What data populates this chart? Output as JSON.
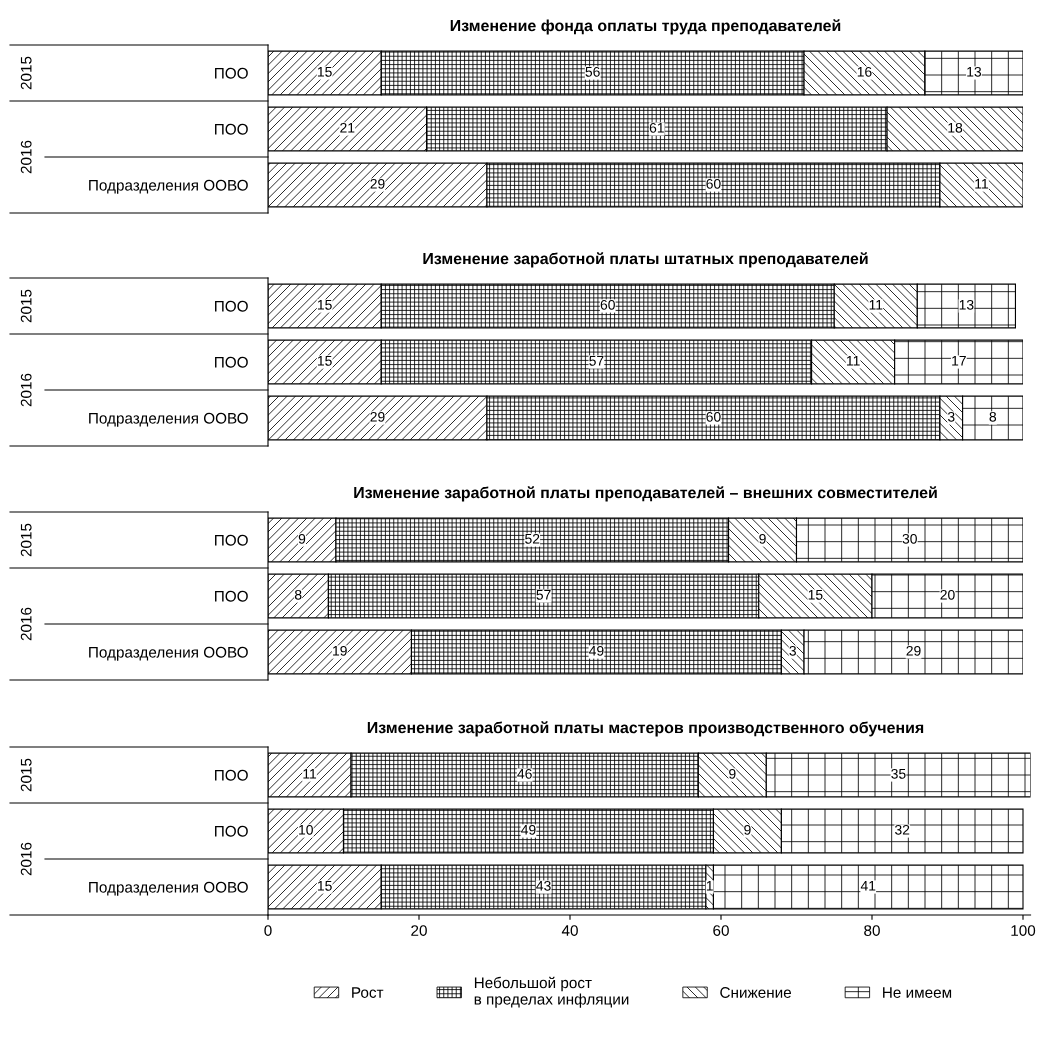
{
  "chart_data": [
    {
      "type": "bar",
      "orientation": "horizontal",
      "stacked": true,
      "data_labels": true,
      "title": "Изменение фонда оплаты труда преподавателей",
      "categories": [
        "ПОО",
        "ПОО",
        "Подразделения ООВО"
      ],
      "annotations": [
        "2015",
        "2016"
      ],
      "xlim": [
        0,
        100
      ],
      "tick_labels": "y",
      "legend": "bottom",
      "series": [
        {
          "name": "Рост",
          "color": "#000000",
          "values": [
            15,
            21,
            29
          ]
        },
        {
          "name": "Небольшой рост\nв пределах инфляции",
          "color": "#000000",
          "values": [
            56,
            61,
            60
          ]
        },
        {
          "name": "Снижение",
          "color": "#000000",
          "values": [
            16,
            18,
            11
          ]
        },
        {
          "name": "Не имеем",
          "color": "#000000",
          "values": [
            13,
            null,
            null
          ]
        }
      ]
    },
    {
      "type": "bar",
      "orientation": "horizontal",
      "stacked": true,
      "data_labels": true,
      "title": "Изменение заработной платы штатных преподавателей",
      "categories": [
        "ПОО",
        "ПОО",
        "Подразделения ООВО"
      ],
      "annotations": [
        "2015",
        "2016"
      ],
      "xlim": [
        0,
        100
      ],
      "tick_labels": "y",
      "series": [
        {
          "color": "#000000",
          "values": [
            15,
            15,
            29
          ]
        },
        {
          "color": "#000000",
          "values": [
            60,
            57,
            60
          ]
        },
        {
          "color": "#000000",
          "values": [
            11,
            11,
            3
          ]
        },
        {
          "color": "#000000",
          "values": [
            13,
            17,
            8
          ]
        }
      ]
    },
    {
      "type": "bar",
      "orientation": "horizontal",
      "stacked": true,
      "data_labels": true,
      "title": "Изменение заработной платы преподавателей – внешних совместителей",
      "categories": [
        "ПОО",
        "ПОО",
        "Подразделения ООВО"
      ],
      "annotations": [
        "2015",
        "2016"
      ],
      "xlim": [
        0,
        100
      ],
      "tick_labels": "y",
      "series": [
        {
          "color": "#000000",
          "values": [
            9,
            8,
            19
          ]
        },
        {
          "color": "#000000",
          "values": [
            52,
            57,
            49
          ]
        },
        {
          "color": "#000000",
          "values": [
            9,
            15,
            3
          ]
        },
        {
          "color": "#000000",
          "values": [
            30,
            20,
            29
          ]
        }
      ]
    },
    {
      "type": "bar",
      "orientation": "horizontal",
      "stacked": true,
      "data_labels": true,
      "title": "Изменение заработной платы мастеров производственного обучения",
      "categories": [
        "ПОО",
        "ПОО",
        "Подразделения ООВО"
      ],
      "annotations": [
        "2015",
        "2016"
      ],
      "xlim": [
        0,
        101
      ],
      "xticks": [
        0,
        20,
        40,
        60,
        80,
        100
      ],
      "series": [
        {
          "color": "#000000",
          "values": [
            11,
            10,
            15
          ]
        },
        {
          "color": "#000000",
          "values": [
            46,
            49,
            43
          ]
        },
        {
          "color": "#000000",
          "values": [
            9,
            9,
            1
          ]
        },
        {
          "color": "#000000",
          "values": [
            35,
            32,
            41
          ]
        }
      ]
    }
  ]
}
